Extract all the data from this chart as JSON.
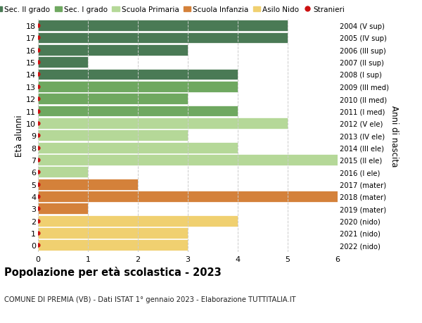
{
  "ages": [
    18,
    17,
    16,
    15,
    14,
    13,
    12,
    11,
    10,
    9,
    8,
    7,
    6,
    5,
    4,
    3,
    2,
    1,
    0
  ],
  "right_labels": [
    "2004 (V sup)",
    "2005 (IV sup)",
    "2006 (III sup)",
    "2007 (II sup)",
    "2008 (I sup)",
    "2009 (III med)",
    "2010 (II med)",
    "2011 (I med)",
    "2012 (V ele)",
    "2013 (IV ele)",
    "2014 (III ele)",
    "2015 (II ele)",
    "2016 (I ele)",
    "2017 (mater)",
    "2018 (mater)",
    "2019 (mater)",
    "2020 (nido)",
    "2021 (nido)",
    "2022 (nido)"
  ],
  "values": [
    5,
    5,
    3,
    1,
    4,
    4,
    3,
    4,
    5,
    3,
    4,
    6,
    1,
    2,
    6,
    1,
    4,
    3,
    3
  ],
  "colors": [
    "#4a7a55",
    "#4a7a55",
    "#4a7a55",
    "#4a7a55",
    "#4a7a55",
    "#6fa860",
    "#6fa860",
    "#6fa860",
    "#b5d898",
    "#b5d898",
    "#b5d898",
    "#b5d898",
    "#b5d898",
    "#d4813a",
    "#d4813a",
    "#d4813a",
    "#f0d070",
    "#f0d070",
    "#f0d070"
  ],
  "legend_labels": [
    "Sec. II grado",
    "Sec. I grado",
    "Scuola Primaria",
    "Scuola Infanzia",
    "Asilo Nido",
    "Stranieri"
  ],
  "legend_colors": [
    "#4a7a55",
    "#6fa860",
    "#b5d898",
    "#d4813a",
    "#f0d070",
    "#cc1111"
  ],
  "title": "Popolazione per età scolastica - 2023",
  "subtitle": "COMUNE DI PREMIA (VB) - Dati ISTAT 1° gennaio 2023 - Elaborazione TUTTITALIA.IT",
  "ylabel_left": "Età alunni",
  "ylabel_right": "Anni di nascita",
  "xlim": [
    0,
    6
  ],
  "background_color": "#ffffff",
  "grid_color": "#cccccc"
}
